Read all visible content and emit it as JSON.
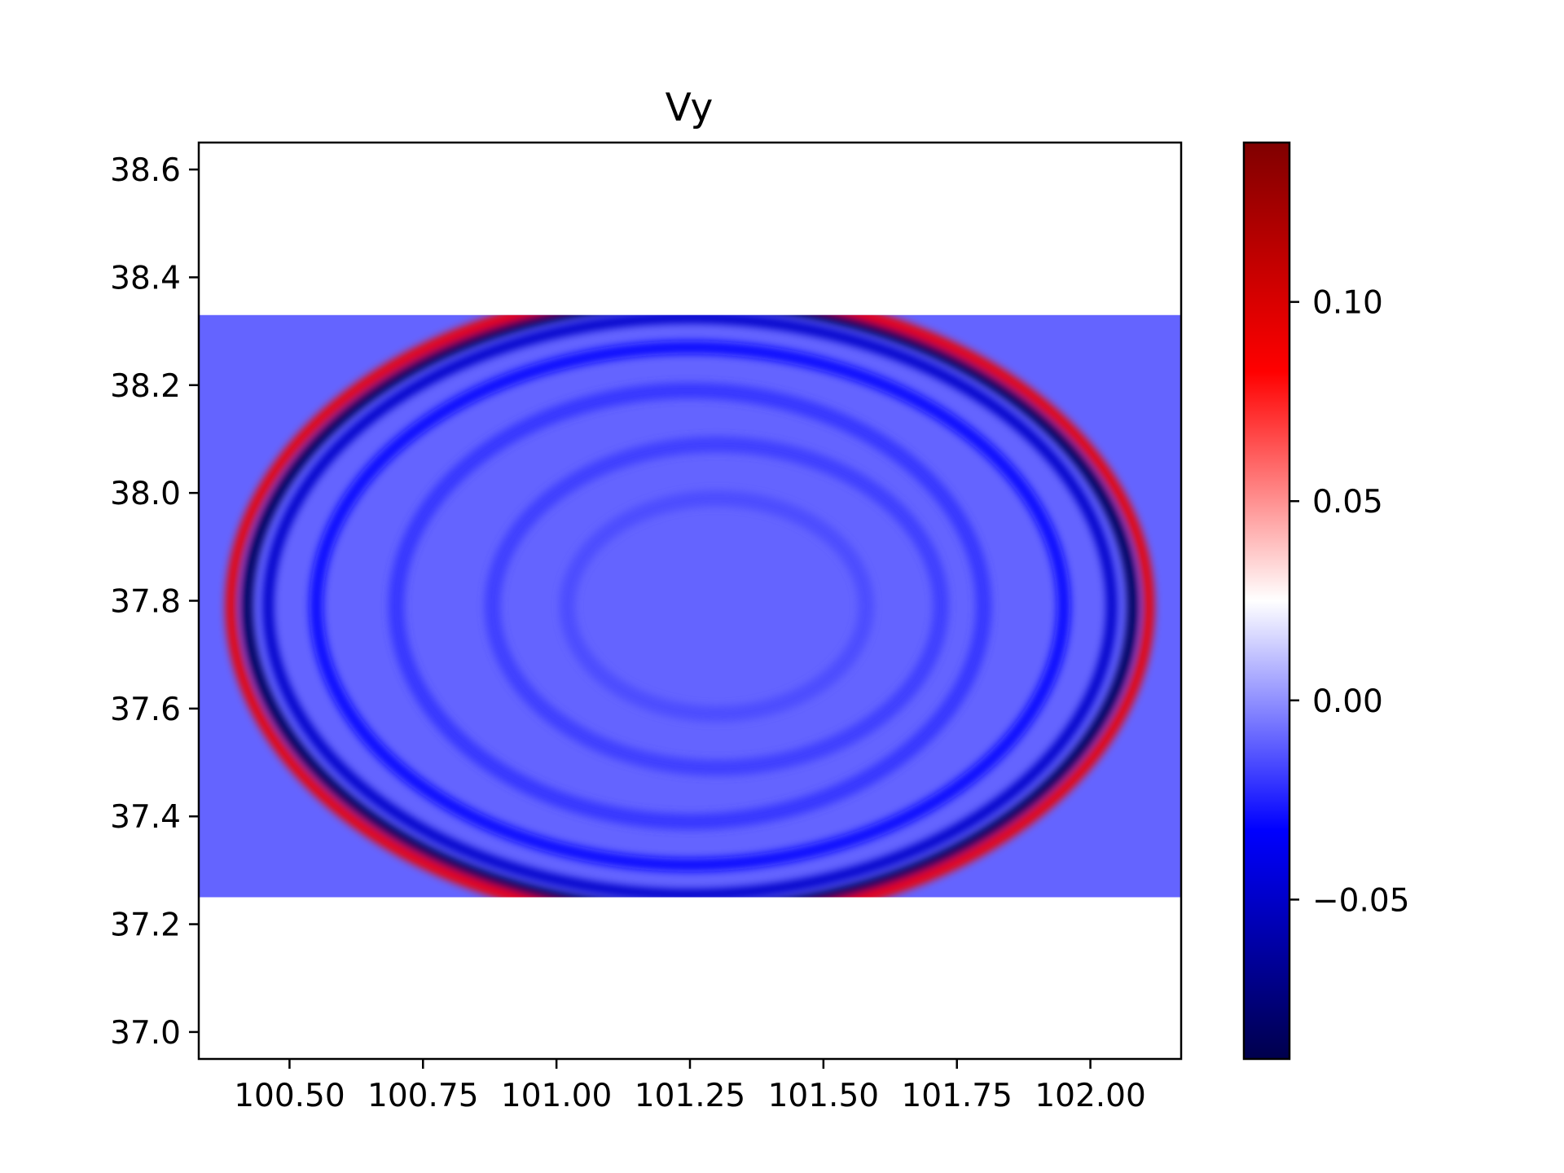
{
  "chart_data": {
    "type": "heatmap",
    "title": "Vy",
    "xlabel": "",
    "ylabel": "",
    "xlim": [
      100.33,
      102.17
    ],
    "ylim": [
      36.95,
      38.65
    ],
    "x_ticks": [
      {
        "value": 100.5,
        "label": "100.50"
      },
      {
        "value": 100.75,
        "label": "100.75"
      },
      {
        "value": 101.0,
        "label": "101.00"
      },
      {
        "value": 101.25,
        "label": "101.25"
      },
      {
        "value": 101.5,
        "label": "101.50"
      },
      {
        "value": 101.75,
        "label": "101.75"
      },
      {
        "value": 102.0,
        "label": "102.00"
      }
    ],
    "y_ticks": [
      {
        "value": 38.6,
        "label": "38.6"
      },
      {
        "value": 38.4,
        "label": "38.4"
      },
      {
        "value": 38.2,
        "label": "38.2"
      },
      {
        "value": 38.0,
        "label": "38.0"
      },
      {
        "value": 37.8,
        "label": "37.8"
      },
      {
        "value": 37.6,
        "label": "37.6"
      },
      {
        "value": 37.4,
        "label": "37.4"
      },
      {
        "value": 37.2,
        "label": "37.2"
      },
      {
        "value": 37.0,
        "label": "37.0"
      }
    ],
    "data_extent": {
      "x": [
        100.33,
        102.17
      ],
      "y": [
        37.25,
        38.33
      ]
    },
    "background_value": -0.01,
    "colormap": {
      "name": "seismic",
      "range": [
        -0.09,
        0.14
      ],
      "stops": [
        {
          "value": -0.09,
          "color": "#00004c"
        },
        {
          "value": -0.0325,
          "color": "#0000ff"
        },
        {
          "value": 0.025,
          "color": "#ffffff"
        },
        {
          "value": 0.0825,
          "color": "#ff0000"
        },
        {
          "value": 0.14,
          "color": "#800000"
        }
      ]
    },
    "colorbar_ticks": [
      {
        "value": 0.1,
        "label": "0.10"
      },
      {
        "value": 0.05,
        "label": "0.05"
      },
      {
        "value": 0.0,
        "label": "0.00"
      },
      {
        "value": -0.05,
        "label": "−0.05"
      }
    ],
    "wavefronts": [
      {
        "cx": 101.25,
        "cy": 37.79,
        "rx": 0.83,
        "ry": 0.565,
        "value": -0.085,
        "width": 0.022
      },
      {
        "cx": 101.25,
        "cy": 37.79,
        "rx": 0.86,
        "ry": 0.585,
        "value": 0.09,
        "width": 0.02
      },
      {
        "cx": 101.25,
        "cy": 37.79,
        "rx": 0.79,
        "ry": 0.535,
        "value": -0.05,
        "width": 0.02
      },
      {
        "cx": 101.25,
        "cy": 37.79,
        "rx": 0.7,
        "ry": 0.48,
        "value": -0.03,
        "width": 0.025
      },
      {
        "cx": 101.25,
        "cy": 37.79,
        "rx": 0.55,
        "ry": 0.4,
        "value": -0.02,
        "width": 0.03
      },
      {
        "cx": 101.3,
        "cy": 37.79,
        "rx": 0.42,
        "ry": 0.3,
        "value": -0.018,
        "width": 0.03
      },
      {
        "cx": 101.3,
        "cy": 37.79,
        "rx": 0.28,
        "ry": 0.2,
        "value": -0.015,
        "width": 0.03
      }
    ]
  }
}
